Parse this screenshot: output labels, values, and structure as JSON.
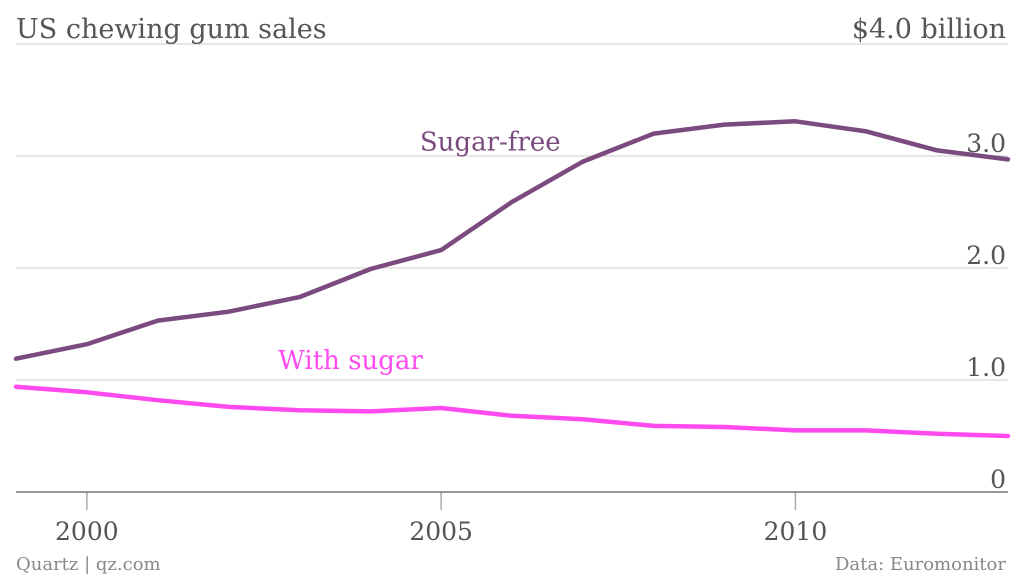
{
  "chart_data": {
    "type": "line",
    "title": "US chewing gum sales",
    "unit_label": "$4.0 billion",
    "y_tick_labels": [
      "0",
      "1.0",
      "2.0",
      "3.0"
    ],
    "y_ticks": [
      0,
      1,
      2,
      3
    ],
    "ylim": [
      0,
      4
    ],
    "x_tick_labels": [
      "2000",
      "2005",
      "2010"
    ],
    "x_ticks": [
      2000,
      2005,
      2010
    ],
    "xlim": [
      1999,
      2013
    ],
    "x": [
      1999,
      2000,
      2001,
      2002,
      2003,
      2004,
      2005,
      2006,
      2007,
      2008,
      2009,
      2010,
      2011,
      2012,
      2013
    ],
    "series": [
      {
        "name": "Sugar-free",
        "color": "#7b4a7e",
        "label_x": 2004.7,
        "label_y": 3.05,
        "values": [
          1.19,
          1.32,
          1.53,
          1.61,
          1.74,
          1.99,
          2.16,
          2.59,
          2.95,
          3.2,
          3.28,
          3.31,
          3.22,
          3.05,
          2.97
        ]
      },
      {
        "name": "With sugar",
        "color": "#ff4af0",
        "label_x": 2002.7,
        "label_y": 1.1,
        "values": [
          0.94,
          0.89,
          0.82,
          0.76,
          0.73,
          0.72,
          0.75,
          0.68,
          0.65,
          0.59,
          0.58,
          0.55,
          0.55,
          0.52,
          0.5
        ]
      }
    ],
    "source": "Data: Euromonitor",
    "credit": "Quartz | qz.com"
  }
}
